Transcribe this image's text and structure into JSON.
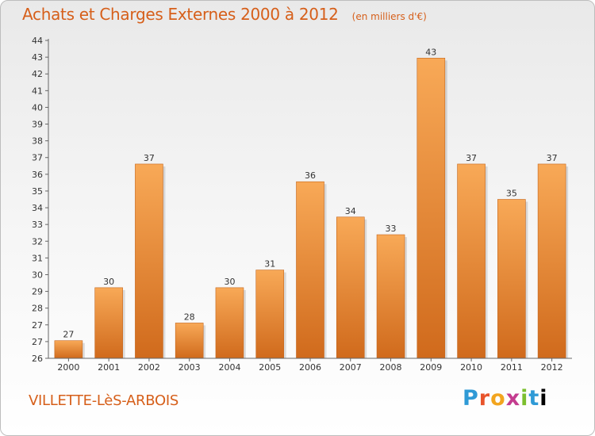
{
  "header": {
    "title": "Achats et Charges Externes 2000 à 2012",
    "unit": "(en milliers d'€)"
  },
  "footer": {
    "commune": "VILLETTE-LèS-ARBOIS",
    "logo_letters": [
      "P",
      "r",
      "o",
      "x",
      "i",
      "t",
      "i"
    ]
  },
  "colors": {
    "accent": "#d65f1a",
    "bar_top": "#f8a957",
    "bar_bottom": "#d06a1c"
  },
  "chart_data": {
    "type": "bar",
    "title": "Achats et Charges Externes 2000 à 2012",
    "subtitle": "(en milliers d'€)",
    "xlabel": "",
    "ylabel": "",
    "categories": [
      "2000",
      "2001",
      "2002",
      "2003",
      "2004",
      "2005",
      "2006",
      "2007",
      "2008",
      "2009",
      "2010",
      "2011",
      "2012"
    ],
    "values": [
      27,
      30,
      37,
      28,
      30,
      31,
      36,
      34,
      33,
      43,
      37,
      35,
      37
    ],
    "ylim": [
      26,
      44
    ],
    "yticks": [
      "26",
      "27",
      "27",
      "28",
      "29",
      "30",
      "31",
      "32",
      "33",
      "34",
      "35",
      "36",
      "37",
      "38",
      "39",
      "40",
      "41",
      "42",
      "43",
      "44"
    ],
    "grid": false,
    "legend": "none"
  }
}
